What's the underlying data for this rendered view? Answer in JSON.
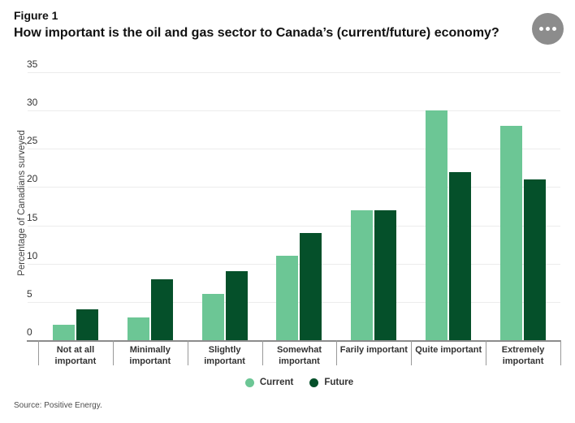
{
  "header": {
    "figure_label": "Figure 1",
    "title": "How important is the oil and gas sector to Canada’s (current/future) economy?",
    "menu_icon": "ellipsis"
  },
  "chart_data": {
    "type": "bar",
    "categories": [
      "Not at all important",
      "Minimally important",
      "Slightly important",
      "Somewhat important",
      "Farily important",
      "Quite important",
      "Extremely important"
    ],
    "categories_display": [
      "Not at all\nimportant",
      "Minimally\nimportant",
      "Slightly important",
      "Somewhat\nimportant",
      "Farily important",
      "Quite important",
      "Extremely\nimportant"
    ],
    "series": [
      {
        "name": "Current",
        "color": "#6CC695",
        "values": [
          2,
          3,
          6,
          11,
          17,
          30,
          28
        ]
      },
      {
        "name": "Future",
        "color": "#05502A",
        "values": [
          4,
          8,
          9,
          14,
          17,
          22,
          21
        ]
      }
    ],
    "title": "How important is the oil and gas sector to Canada’s (current/future) economy?",
    "xlabel": "",
    "ylabel": "Percentage of Canadians surveyed",
    "ylim": [
      0,
      35
    ],
    "yticks": [
      0,
      5,
      10,
      15,
      20,
      25,
      30,
      35
    ],
    "grid": true,
    "legend_position": "bottom"
  },
  "footer": {
    "source": "Source: Positive Energy."
  },
  "colors": {
    "grid": "#ECECEC",
    "axis": "#8C8C8C",
    "menu_circle": "#8C8C8C",
    "label_text": "#333333"
  }
}
